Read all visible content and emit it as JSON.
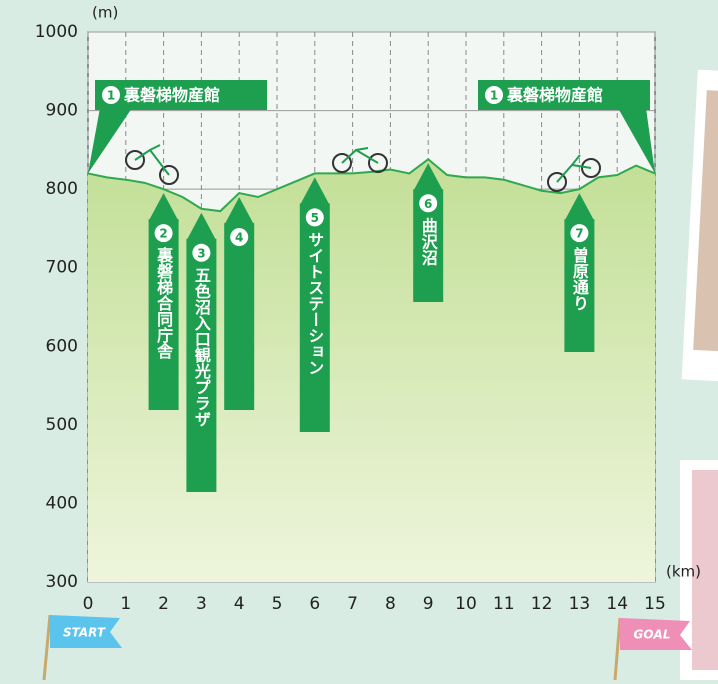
{
  "chart_data": {
    "type": "area",
    "y_unit": "(m)",
    "x_unit": "(km)",
    "x": [
      0,
      0.5,
      1,
      1.5,
      2,
      2.5,
      3,
      3.5,
      4,
      4.5,
      5,
      5.5,
      6,
      6.5,
      7,
      7.5,
      8,
      8.5,
      9,
      9.5,
      10,
      10.5,
      11,
      11.5,
      12,
      12.5,
      13,
      13.5,
      14,
      14.5,
      15
    ],
    "series": [
      {
        "color": "#2fa84f",
        "values": [
          820,
          815,
          812,
          808,
          800,
          790,
          775,
          772,
          795,
          790,
          800,
          810,
          820,
          820,
          820,
          822,
          825,
          820,
          838,
          818,
          815,
          815,
          812,
          805,
          798,
          795,
          800,
          815,
          818,
          830,
          820
        ]
      }
    ],
    "xlim": [
      0,
      15
    ],
    "xticks": [
      0,
      1,
      2,
      3,
      4,
      5,
      6,
      7,
      8,
      9,
      10,
      11,
      12,
      13,
      14,
      15
    ],
    "ylim": [
      300,
      1000
    ],
    "yticks": [
      300,
      400,
      500,
      600,
      700,
      800,
      900,
      1000
    ],
    "grid": true,
    "landmarks": [
      {
        "number": 1,
        "label": "裏磐梯物産館",
        "x": 0
      },
      {
        "number": 1,
        "label": "裏磐梯物産館",
        "x": 15
      },
      {
        "number": 2,
        "label": "裏磐梯合同庁舎",
        "x": 2
      },
      {
        "number": 3,
        "label": "五色沼入口観光プラザ",
        "x": 3
      },
      {
        "number": 4,
        "x": 4
      },
      {
        "number": 5,
        "label": "サイトステーション",
        "x": 6
      },
      {
        "number": 6,
        "label": "曲沢沼",
        "x": 9
      },
      {
        "number": 7,
        "label": "曽原通り",
        "x": 13
      }
    ],
    "start_label": "START",
    "goal_label": "GOAL"
  }
}
